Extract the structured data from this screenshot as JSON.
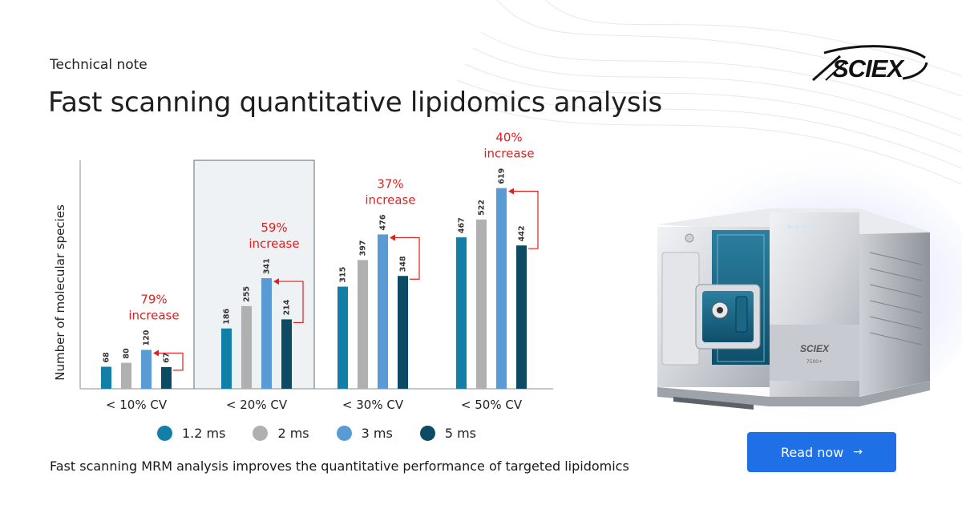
{
  "header": {
    "eyebrow": "Technical note",
    "title": "Fast scanning quantitative lipidomics analysis",
    "logo_text": "SCIEX"
  },
  "colors": {
    "series_1_2ms": "#127fa6",
    "series_2ms": "#b0b0b0",
    "series_3ms": "#5b9bd5",
    "series_5ms": "#0d4a63",
    "increase_text": "#e02020",
    "cta_bg": "#1f6fe6",
    "highlight_box": "#eef2f5"
  },
  "chart_data": {
    "type": "bar",
    "title": "",
    "xlabel": "",
    "ylabel": "Number of molecular species",
    "ylim": [
      0,
      700
    ],
    "grid": false,
    "legend_position": "bottom",
    "categories": [
      "< 10% CV",
      "< 20% CV",
      "< 30% CV",
      "< 50% CV"
    ],
    "highlighted_category": "< 20% CV",
    "series": [
      {
        "name": "1.2 ms",
        "values": [
          68,
          186,
          315,
          467
        ]
      },
      {
        "name": "2 ms",
        "values": [
          80,
          255,
          397,
          522
        ]
      },
      {
        "name": "3 ms",
        "values": [
          120,
          341,
          476,
          619
        ]
      },
      {
        "name": "5 ms",
        "values": [
          67,
          214,
          348,
          442
        ]
      }
    ],
    "annotations": [
      {
        "category": "< 10% CV",
        "pct": "79%",
        "word": "increase"
      },
      {
        "category": "< 20% CV",
        "pct": "59%",
        "word": "increase"
      },
      {
        "category": "< 30% CV",
        "pct": "37%",
        "word": "increase"
      },
      {
        "category": "< 50% CV",
        "pct": "40%",
        "word": "increase"
      }
    ]
  },
  "legend": {
    "items": [
      {
        "label": "1.2 ms"
      },
      {
        "label": "2 ms"
      },
      {
        "label": "3 ms"
      },
      {
        "label": "5 ms"
      }
    ]
  },
  "caption": "Fast scanning MRM analysis improves the quantitative performance of targeted lipidomics",
  "cta": {
    "label": "Read now",
    "arrow": "→"
  },
  "instrument": {
    "badge_text": "SCIEX",
    "model_text": "7500+"
  }
}
